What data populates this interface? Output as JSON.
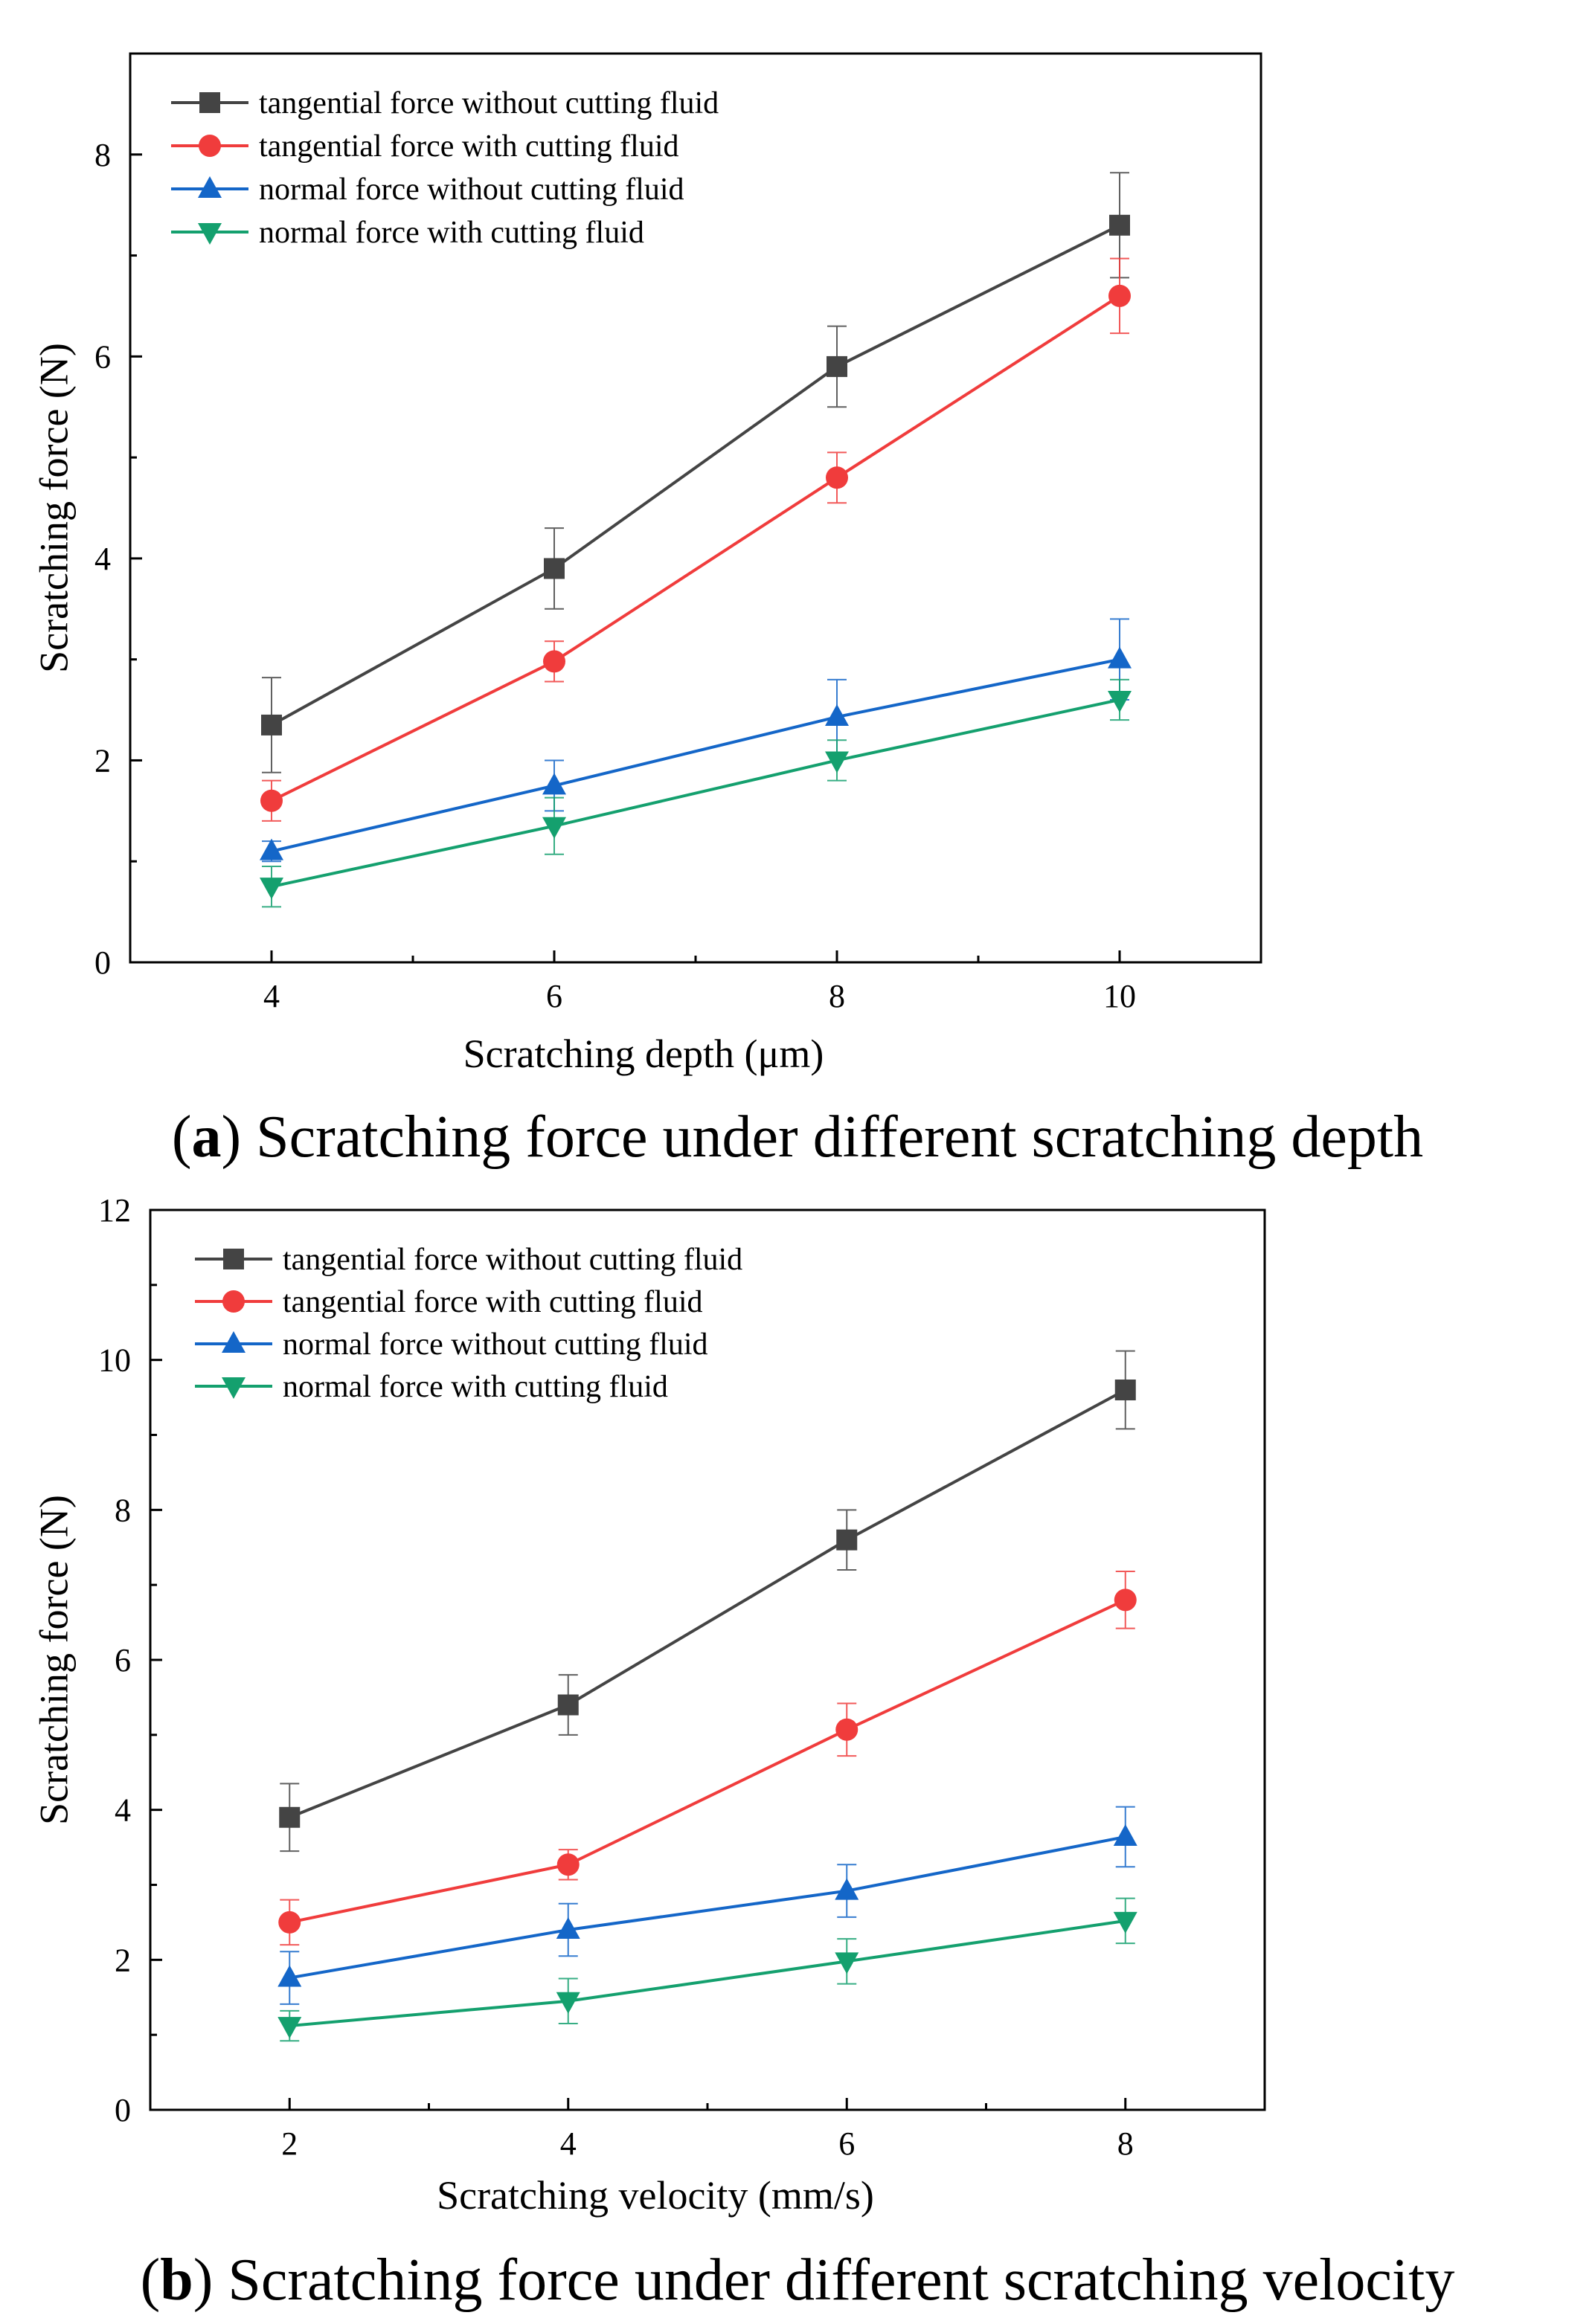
{
  "colors": {
    "tangential_without": "#444444",
    "tangential_with": "#f03c3c",
    "normal_without": "#1466c8",
    "normal_with": "#14a06e"
  },
  "chart_data": [
    {
      "type": "line",
      "caption": {
        "label": "a",
        "text": "Scratching force under different scratching depth"
      },
      "xlabel": "Scratching depth (μm)",
      "ylabel": "Scratching force (N)",
      "x": [
        4,
        6,
        8,
        10
      ],
      "xlim": [
        3,
        11
      ],
      "ylim": [
        0,
        9
      ],
      "xticks": [
        4,
        6,
        8,
        10
      ],
      "yticks": [
        0,
        2,
        4,
        6,
        8
      ],
      "legend_position": "top-left",
      "series": [
        {
          "name": "tangential force without cutting fluid",
          "marker": "square",
          "color_key": "tangential_without",
          "values": [
            2.35,
            3.9,
            5.9,
            7.3
          ],
          "errors": [
            0.47,
            0.4,
            0.4,
            0.52
          ]
        },
        {
          "name": "tangential force with cutting fluid",
          "marker": "circle",
          "color_key": "tangential_with",
          "values": [
            1.6,
            2.98,
            4.8,
            6.6
          ],
          "errors": [
            0.2,
            0.2,
            0.25,
            0.37
          ]
        },
        {
          "name": "normal force without cutting fluid",
          "marker": "triangle-up",
          "color_key": "normal_without",
          "values": [
            1.1,
            1.75,
            2.43,
            3.0
          ],
          "errors": [
            0.1,
            0.25,
            0.37,
            0.4
          ]
        },
        {
          "name": "normal force with cutting fluid",
          "marker": "triangle-down",
          "color_key": "normal_with",
          "values": [
            0.75,
            1.35,
            2.0,
            2.6
          ],
          "errors": [
            0.2,
            0.28,
            0.2,
            0.2
          ]
        }
      ]
    },
    {
      "type": "line",
      "caption": {
        "label": "b",
        "text": "Scratching force under different scratching velocity"
      },
      "xlabel": "Scratching velocity (mm/s)",
      "ylabel": "Scratching force (N)",
      "x": [
        2,
        4,
        6,
        8
      ],
      "xlim": [
        1,
        9
      ],
      "ylim": [
        0,
        12
      ],
      "xticks": [
        2,
        4,
        6,
        8
      ],
      "yticks": [
        0,
        2,
        4,
        6,
        8,
        10,
        12
      ],
      "legend_position": "top-left",
      "series": [
        {
          "name": "tangential force without cutting fluid",
          "marker": "square",
          "color_key": "tangential_without",
          "values": [
            3.9,
            5.4,
            7.6,
            9.6
          ],
          "errors": [
            0.45,
            0.4,
            0.4,
            0.52
          ]
        },
        {
          "name": "tangential force with cutting fluid",
          "marker": "circle",
          "color_key": "tangential_with",
          "values": [
            2.5,
            3.27,
            5.07,
            6.8
          ],
          "errors": [
            0.3,
            0.2,
            0.35,
            0.38
          ]
        },
        {
          "name": "normal force without cutting fluid",
          "marker": "triangle-up",
          "color_key": "normal_without",
          "values": [
            1.76,
            2.4,
            2.92,
            3.64
          ],
          "errors": [
            0.35,
            0.35,
            0.35,
            0.4
          ]
        },
        {
          "name": "normal force with cutting fluid",
          "marker": "triangle-down",
          "color_key": "normal_with",
          "values": [
            1.12,
            1.45,
            1.98,
            2.52
          ],
          "errors": [
            0.2,
            0.3,
            0.3,
            0.3
          ]
        }
      ]
    }
  ]
}
